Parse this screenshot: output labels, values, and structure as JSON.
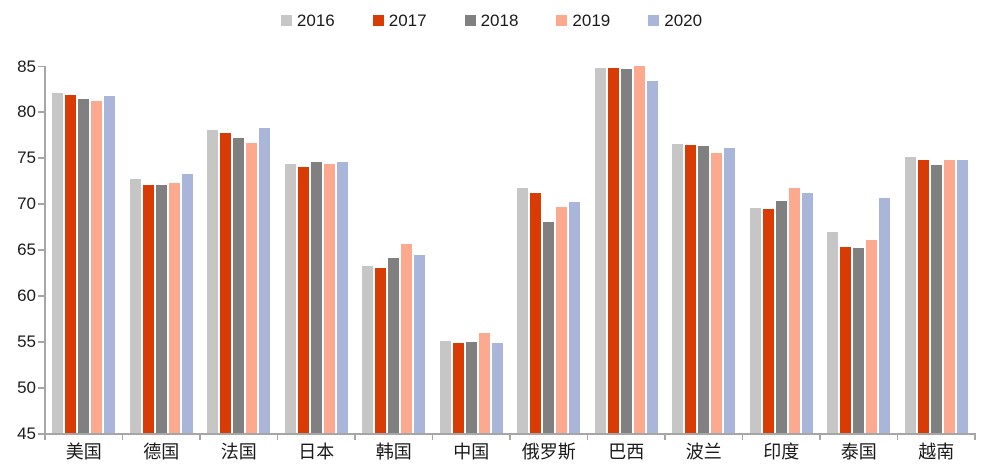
{
  "chart_data": {
    "type": "bar",
    "title": "",
    "xlabel": "",
    "ylabel": "",
    "categories": [
      "美国",
      "德国",
      "法国",
      "日本",
      "韩国",
      "中国",
      "俄罗斯",
      "巴西",
      "波兰",
      "印度",
      "泰国",
      "越南"
    ],
    "series": [
      {
        "name": "2016",
        "color": "#c6c6c6",
        "values": [
          82.0,
          72.6,
          78.0,
          74.3,
          63.2,
          55.0,
          71.7,
          84.7,
          76.5,
          69.5,
          66.9,
          75.0
        ]
      },
      {
        "name": "2017",
        "color": "#d93b05",
        "values": [
          81.8,
          72.0,
          77.6,
          74.0,
          63.0,
          54.8,
          71.1,
          84.7,
          76.3,
          69.4,
          65.2,
          74.7
        ]
      },
      {
        "name": "2018",
        "color": "#808080",
        "values": [
          81.3,
          72.0,
          77.1,
          74.5,
          64.0,
          54.9,
          68.0,
          84.6,
          76.2,
          70.2,
          65.1,
          74.2
        ]
      },
      {
        "name": "2019",
        "color": "#fca98f",
        "values": [
          81.1,
          72.2,
          76.6,
          74.3,
          65.6,
          55.9,
          69.6,
          84.9,
          75.5,
          71.7,
          66.0,
          74.7
        ]
      },
      {
        "name": "2020",
        "color": "#a9b6da",
        "values": [
          81.7,
          73.2,
          78.2,
          74.5,
          64.4,
          54.8,
          70.1,
          83.3,
          76.0,
          71.1,
          70.6,
          74.7
        ]
      }
    ],
    "ylim": [
      45,
      85
    ],
    "ytick_step": 5,
    "ytick_labels": [
      "45",
      "50",
      "55",
      "60",
      "65",
      "70",
      "75",
      "80",
      "85"
    ],
    "legend_position": "top-center",
    "grid": false,
    "axis_color": "#a6a6a6",
    "text_color": "#1a1a1a"
  }
}
